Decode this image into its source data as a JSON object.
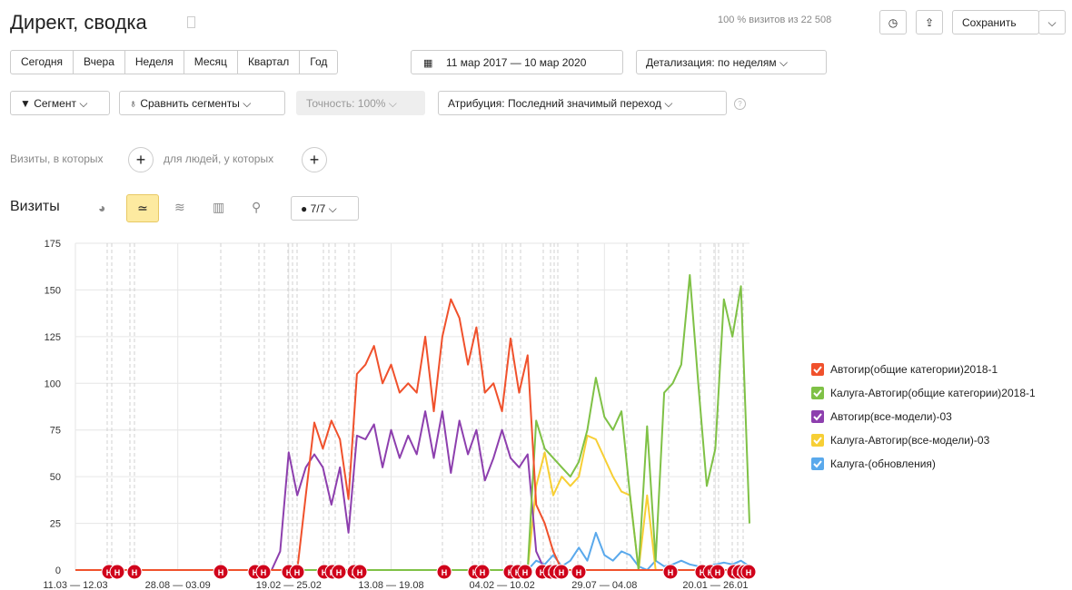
{
  "header": {
    "title": "Директ, сводка",
    "visits_share": "100 % визитов из 22 508",
    "save": "Сохранить"
  },
  "periods": [
    "Сегодня",
    "Вчера",
    "Неделя",
    "Месяц",
    "Квартал",
    "Год"
  ],
  "date_range": "11 мар 2017 — 10 мар 2020",
  "detail": "Детализация: по неделям",
  "filters": {
    "segment": "Сегмент",
    "compare": "Сравнить сегменты",
    "accuracy": "Точность: 100%",
    "attribution": "Атрибуция: Последний значимый переход"
  },
  "conditions": {
    "visits_where": "Визиты, в которых",
    "people_where": "для людей, у которых"
  },
  "chart_heading": "Визиты",
  "series_count": "7/7",
  "annotation_marker": "Н",
  "chart_data": {
    "type": "line",
    "grid": true,
    "legend": "right",
    "ylim": [
      0,
      175
    ],
    "yticks": [
      0,
      25,
      50,
      75,
      100,
      125,
      150,
      175
    ],
    "categories": [
      "11.03 — 12.03",
      null,
      null,
      null,
      null,
      null,
      null,
      null,
      null,
      null,
      null,
      null,
      "28.08 — 03.09",
      null,
      null,
      null,
      null,
      null,
      null,
      null,
      null,
      null,
      null,
      null,
      null,
      "19.02 — 25.02",
      null,
      null,
      null,
      null,
      null,
      null,
      null,
      null,
      null,
      null,
      null,
      "13.08 — 19.08",
      null,
      null,
      null,
      null,
      null,
      null,
      null,
      null,
      null,
      null,
      null,
      null,
      "04.02 — 10.02",
      null,
      null,
      null,
      null,
      null,
      null,
      null,
      null,
      null,
      null,
      null,
      "29.07 — 04.08",
      null,
      null,
      null,
      null,
      null,
      null,
      null,
      null,
      null,
      null,
      null,
      null,
      "20.01 — 26.01",
      null,
      null,
      null,
      null
    ],
    "series": [
      {
        "name": "Калуга-(обновления)",
        "color": "#5aa9ec",
        "values": [
          0,
          0,
          0,
          0,
          0,
          0,
          0,
          0,
          0,
          0,
          0,
          0,
          0,
          0,
          0,
          0,
          0,
          0,
          0,
          0,
          0,
          0,
          0,
          0,
          0,
          0,
          0,
          0,
          0,
          0,
          0,
          0,
          0,
          0,
          0,
          0,
          0,
          0,
          0,
          0,
          0,
          0,
          0,
          0,
          0,
          0,
          0,
          0,
          0,
          0,
          0,
          0,
          0,
          0,
          5,
          3,
          8,
          2,
          5,
          12,
          5,
          20,
          8,
          5,
          10,
          8,
          2,
          0,
          5,
          2,
          3,
          5,
          3,
          2,
          2,
          3,
          4,
          3,
          5,
          2
        ]
      },
      {
        "name": "Калуга-Автогир(все-модели)-03",
        "color": "#f7cf35",
        "values": [
          0,
          0,
          0,
          0,
          0,
          0,
          0,
          0,
          0,
          0,
          0,
          0,
          0,
          0,
          0,
          0,
          0,
          0,
          0,
          0,
          0,
          0,
          0,
          0,
          0,
          0,
          0,
          0,
          0,
          0,
          0,
          0,
          0,
          0,
          0,
          0,
          0,
          0,
          0,
          0,
          0,
          0,
          0,
          0,
          0,
          0,
          0,
          0,
          0,
          0,
          0,
          0,
          0,
          0,
          45,
          63,
          40,
          50,
          45,
          50,
          72,
          70,
          60,
          50,
          42,
          40,
          0,
          40,
          0,
          0,
          0,
          0,
          0,
          0,
          0,
          0,
          0,
          0,
          0,
          0
        ]
      },
      {
        "name": "Автогир(все-модели)-03",
        "color": "#8d3fae",
        "values": [
          0,
          0,
          0,
          0,
          0,
          0,
          0,
          0,
          0,
          0,
          0,
          0,
          0,
          0,
          0,
          0,
          0,
          0,
          0,
          0,
          0,
          0,
          0,
          0,
          10,
          63,
          40,
          55,
          62,
          55,
          35,
          55,
          20,
          72,
          70,
          78,
          55,
          75,
          60,
          72,
          62,
          85,
          60,
          85,
          52,
          80,
          62,
          75,
          48,
          60,
          75,
          60,
          55,
          62,
          10,
          0,
          0,
          0,
          0,
          0,
          0,
          0,
          0,
          0,
          0,
          0,
          0,
          0,
          0,
          0,
          0,
          0,
          0,
          0,
          0,
          0,
          0,
          0,
          0,
          0
        ]
      },
      {
        "name": "Калуга-Автогир(общие категории)2018-1",
        "color": "#7fc146",
        "values": [
          0,
          0,
          0,
          0,
          0,
          0,
          0,
          0,
          0,
          0,
          0,
          0,
          0,
          0,
          0,
          0,
          0,
          0,
          0,
          0,
          0,
          0,
          0,
          0,
          0,
          0,
          0,
          0,
          0,
          0,
          0,
          0,
          0,
          0,
          0,
          0,
          0,
          0,
          0,
          0,
          0,
          0,
          0,
          0,
          0,
          0,
          0,
          0,
          0,
          0,
          0,
          0,
          0,
          0,
          80,
          65,
          60,
          55,
          50,
          58,
          75,
          103,
          82,
          75,
          85,
          40,
          0,
          77,
          5,
          95,
          100,
          110,
          158,
          100,
          45,
          65,
          145,
          125,
          152,
          25
        ]
      },
      {
        "name": "Автогир(общие категории)2018-1",
        "color": "#f0512c",
        "values": [
          0,
          0,
          0,
          0,
          0,
          0,
          0,
          0,
          0,
          0,
          0,
          0,
          0,
          0,
          0,
          0,
          0,
          0,
          0,
          0,
          0,
          0,
          0,
          0,
          0,
          0,
          0,
          40,
          79,
          65,
          80,
          70,
          38,
          105,
          110,
          120,
          100,
          110,
          95,
          100,
          95,
          125,
          85,
          125,
          145,
          135,
          110,
          130,
          95,
          100,
          85,
          124,
          95,
          115,
          35,
          25,
          10,
          0,
          0,
          0,
          0,
          0,
          0,
          0,
          0,
          0,
          0,
          0,
          0,
          0,
          0,
          0,
          0,
          0,
          0,
          0,
          0,
          0,
          0,
          0
        ]
      }
    ]
  }
}
